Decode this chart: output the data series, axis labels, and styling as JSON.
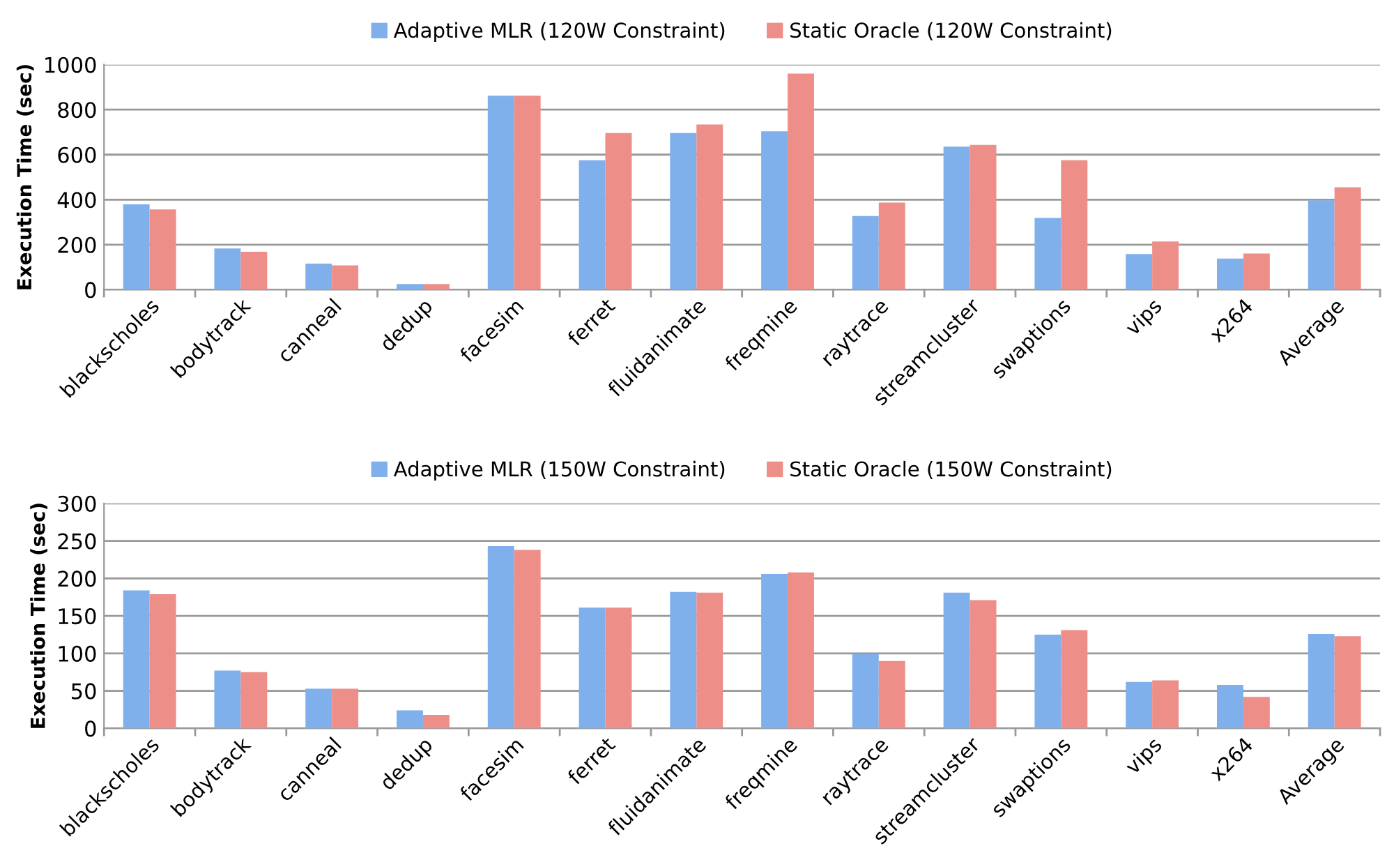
{
  "chart_data": [
    {
      "type": "bar",
      "ylabel": "Execution Time (sec)",
      "categories": [
        "blackscholes",
        "bodytrack",
        "canneal",
        "dedup",
        "facesim",
        "ferret",
        "fluidanimate",
        "freqmine",
        "raytrace",
        "streamcluster",
        "swaptions",
        "vips",
        "x264",
        "Average"
      ],
      "series": [
        {
          "name": "Adaptive MLR (120W Constraint)",
          "color": "#7fb0ec",
          "values": [
            379,
            183,
            116,
            25,
            862,
            575,
            696,
            704,
            327,
            636,
            319,
            158,
            138,
            397
          ]
        },
        {
          "name": "Static Oracle (120W Constraint)",
          "color": "#ee8e88",
          "values": [
            357,
            168,
            108,
            25,
            862,
            696,
            734,
            960,
            387,
            643,
            575,
            214,
            161,
            455
          ]
        }
      ],
      "ylim": [
        0,
        1000
      ],
      "yticks": [
        0,
        200,
        400,
        600,
        800,
        1000
      ],
      "grid": "y",
      "legend": "top"
    },
    {
      "type": "bar",
      "ylabel": "Execution Time (sec)",
      "categories": [
        "blackscholes",
        "bodytrack",
        "canneal",
        "dedup",
        "facesim",
        "ferret",
        "fluidanimate",
        "freqmine",
        "raytrace",
        "streamcluster",
        "swaptions",
        "vips",
        "x264",
        "Average"
      ],
      "series": [
        {
          "name": "Adaptive MLR (150W Constraint)",
          "color": "#7fb0ec",
          "values": [
            184,
            77,
            53,
            24,
            243,
            161,
            182,
            206,
            99,
            181,
            125,
            62,
            58,
            126
          ]
        },
        {
          "name": "Static Oracle (150W Constraint)",
          "color": "#ee8e88",
          "values": [
            179,
            75,
            53,
            18,
            238,
            161,
            181,
            208,
            90,
            171,
            131,
            64,
            42,
            123
          ]
        }
      ],
      "ylim": [
        0,
        300
      ],
      "yticks": [
        0,
        50,
        100,
        150,
        200,
        250,
        300
      ],
      "grid": "y",
      "legend": "top"
    }
  ]
}
